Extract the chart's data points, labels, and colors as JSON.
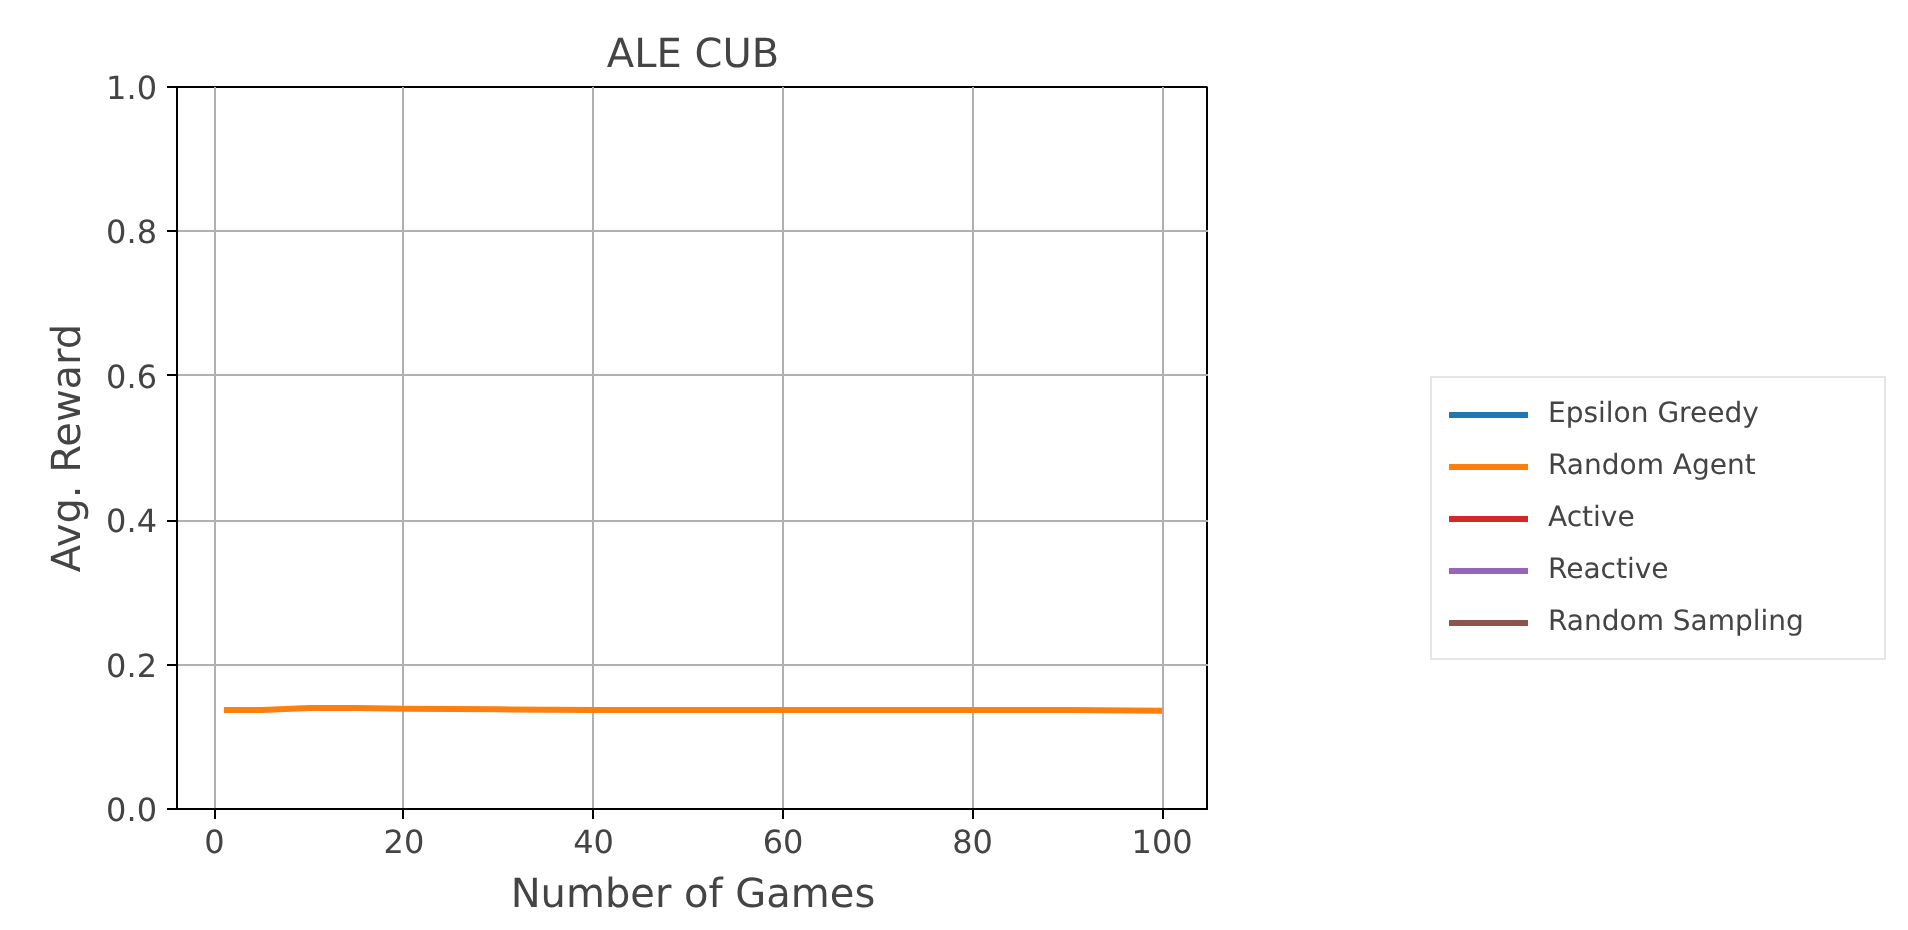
{
  "chart_data": {
    "type": "line",
    "title": "ALE CUB",
    "xlabel": "Number of Games",
    "ylabel": "Avg. Reward",
    "x": [
      1,
      5,
      10,
      15,
      20,
      30,
      40,
      50,
      60,
      70,
      80,
      90,
      100
    ],
    "series": [
      {
        "name": "Epsilon Greedy",
        "color": "#1f77b4",
        "values": [
          null,
          null,
          null,
          null,
          null,
          null,
          null,
          null,
          null,
          null,
          null,
          null,
          null
        ]
      },
      {
        "name": "Random Agent",
        "color": "#ff7f0e",
        "values": [
          0.137,
          0.137,
          0.14,
          0.14,
          0.139,
          0.138,
          0.137,
          0.137,
          0.137,
          0.137,
          0.137,
          0.137,
          0.136
        ]
      },
      {
        "name": "Active",
        "color": "#d62728",
        "values": [
          null,
          null,
          null,
          null,
          null,
          null,
          null,
          null,
          null,
          null,
          null,
          null,
          null
        ]
      },
      {
        "name": "Reactive",
        "color": "#9467bd",
        "values": [
          null,
          null,
          null,
          null,
          null,
          null,
          null,
          null,
          null,
          null,
          null,
          null,
          null
        ]
      },
      {
        "name": "Random Sampling",
        "color": "#8c564b",
        "values": [
          null,
          null,
          null,
          null,
          null,
          null,
          null,
          null,
          null,
          null,
          null,
          null,
          null
        ]
      }
    ],
    "xlim": [
      -3.95,
      104.95
    ],
    "ylim": [
      0,
      1
    ],
    "xticks": [
      0,
      20,
      40,
      60,
      80,
      100
    ],
    "yticks": [
      {
        "value": 0,
        "label": "0.0"
      },
      {
        "value": 0.2,
        "label": "0.2"
      },
      {
        "value": 0.4,
        "label": "0.4"
      },
      {
        "value": 0.6,
        "label": "0.6"
      },
      {
        "value": 0.8,
        "label": "0.8"
      },
      {
        "value": 1,
        "label": "1.0"
      }
    ],
    "grid": true,
    "legend": "right"
  }
}
